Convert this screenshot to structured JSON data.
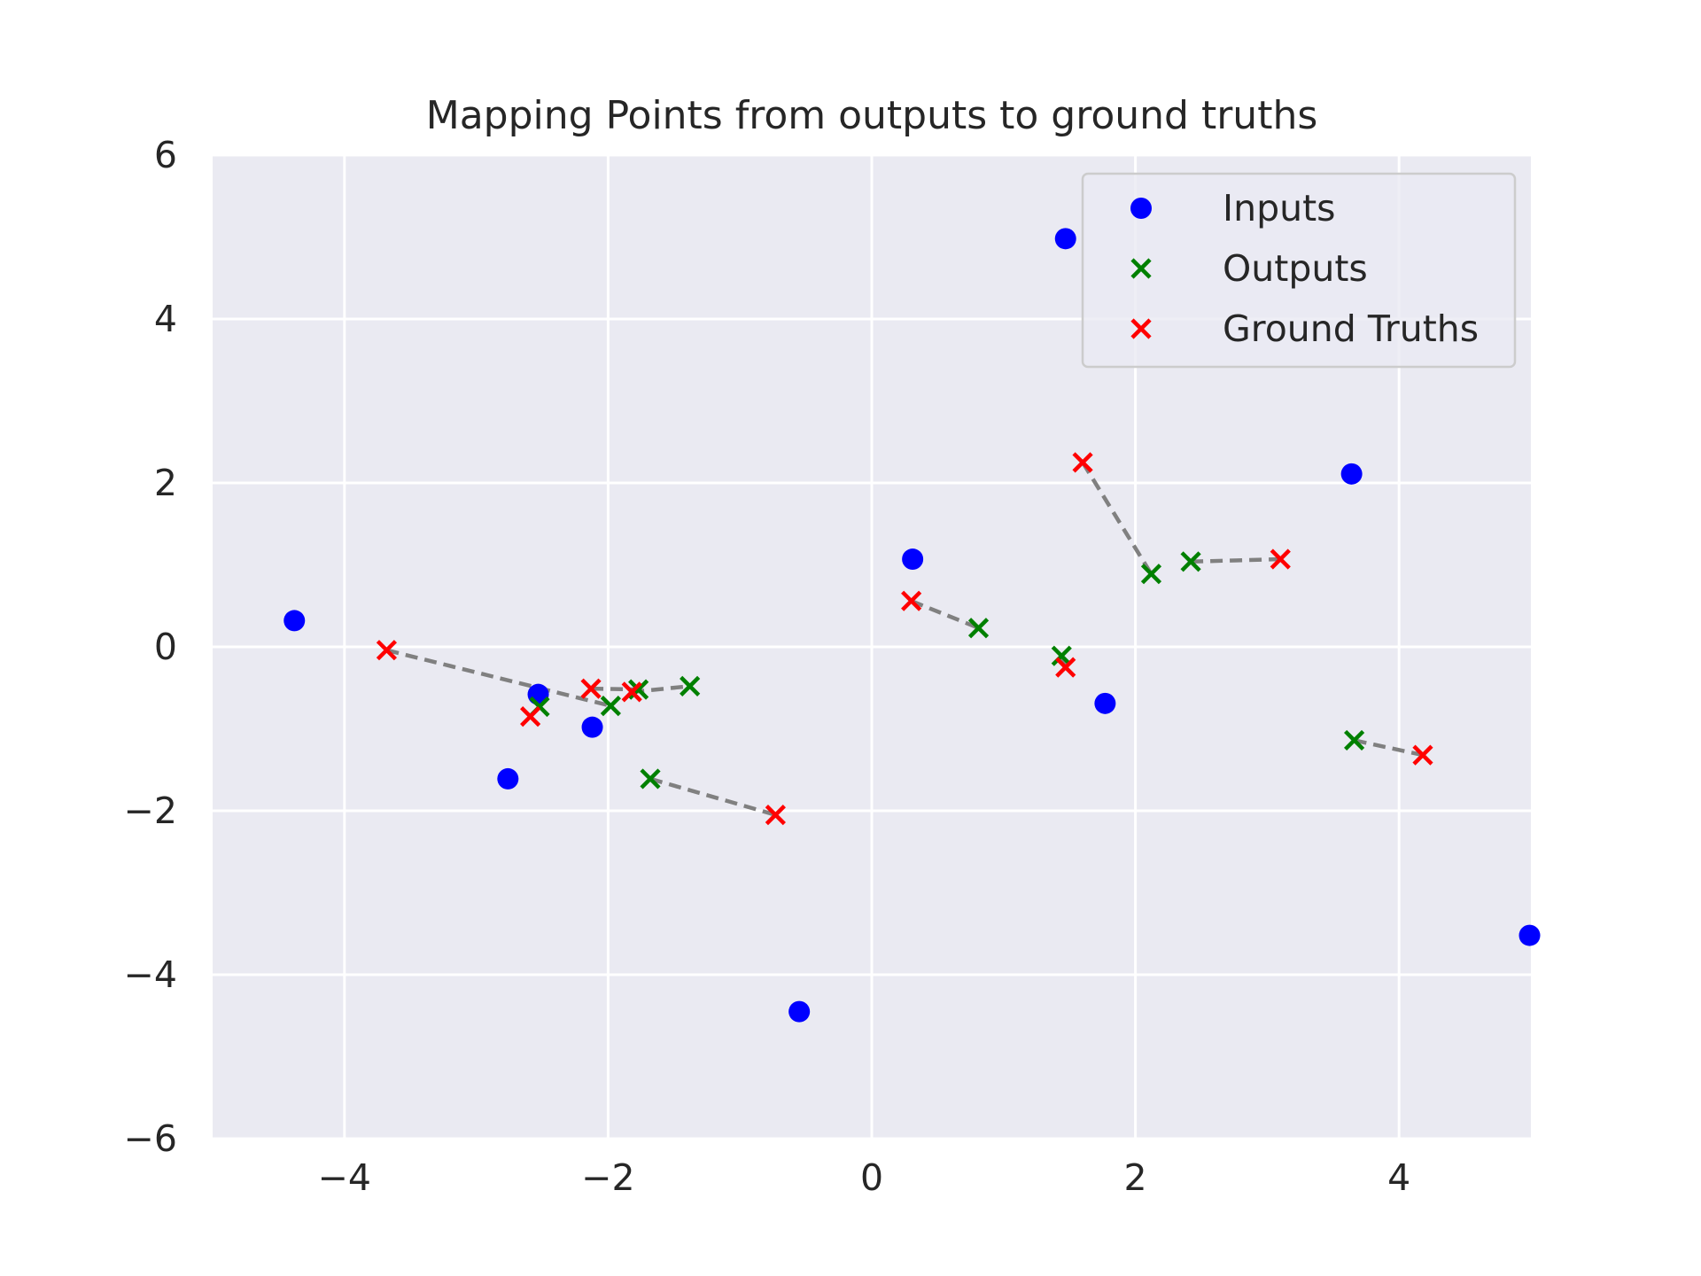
{
  "chart_data": {
    "type": "scatter",
    "title": "Mapping Points from outputs to ground truths",
    "xlabel": "",
    "ylabel": "",
    "xlim": [
      -5,
      5
    ],
    "ylim": [
      -6,
      6
    ],
    "xticks": [
      -4,
      -2,
      0,
      2,
      4
    ],
    "yticks": [
      -6,
      -4,
      -2,
      0,
      2,
      4,
      6
    ],
    "xtick_labels": [
      "−4",
      "−2",
      "0",
      "2",
      "4"
    ],
    "ytick_labels": [
      "−6",
      "−4",
      "−2",
      "0",
      "2",
      "4",
      "6"
    ],
    "grid": true,
    "legend_position": "top-right",
    "series": [
      {
        "name": "Inputs",
        "marker": "circle",
        "color": "#0000ff",
        "points": [
          [
            -4.38,
            0.32
          ],
          [
            -2.53,
            -0.58
          ],
          [
            -2.12,
            -0.98
          ],
          [
            -2.76,
            -1.61
          ],
          [
            -0.55,
            -4.45
          ],
          [
            0.31,
            1.07
          ],
          [
            1.47,
            4.98
          ],
          [
            1.77,
            -0.69
          ],
          [
            3.64,
            2.11
          ],
          [
            4.99,
            -3.52
          ]
        ]
      },
      {
        "name": "Outputs",
        "marker": "x",
        "color": "#008000",
        "points": [
          [
            -2.52,
            -0.73
          ],
          [
            -1.98,
            -0.72
          ],
          [
            -1.77,
            -0.52
          ],
          [
            -1.38,
            -0.48
          ],
          [
            -1.68,
            -1.61
          ],
          [
            0.81,
            0.23
          ],
          [
            1.44,
            -0.11
          ],
          [
            2.12,
            0.89
          ],
          [
            2.42,
            1.04
          ],
          [
            3.66,
            -1.14
          ]
        ]
      },
      {
        "name": "Ground Truths",
        "marker": "x",
        "color": "#ff0000",
        "points": [
          [
            -3.68,
            -0.04
          ],
          [
            -2.59,
            -0.85
          ],
          [
            -2.13,
            -0.51
          ],
          [
            -1.82,
            -0.55
          ],
          [
            -0.73,
            -2.05
          ],
          [
            0.3,
            0.56
          ],
          [
            1.47,
            -0.25
          ],
          [
            1.6,
            2.25
          ],
          [
            3.1,
            1.07
          ],
          [
            4.18,
            -1.32
          ]
        ]
      }
    ],
    "connections": [
      [
        [
          -3.68,
          -0.04
        ],
        [
          -1.98,
          -0.72
        ]
      ],
      [
        [
          -2.59,
          -0.85
        ],
        [
          -2.52,
          -0.73
        ]
      ],
      [
        [
          -2.13,
          -0.51
        ],
        [
          -1.77,
          -0.52
        ]
      ],
      [
        [
          -1.82,
          -0.55
        ],
        [
          -1.38,
          -0.48
        ]
      ],
      [
        [
          -1.68,
          -1.61
        ],
        [
          -0.73,
          -2.05
        ]
      ],
      [
        [
          0.3,
          0.56
        ],
        [
          0.81,
          0.23
        ]
      ],
      [
        [
          1.44,
          -0.11
        ],
        [
          1.47,
          -0.25
        ]
      ],
      [
        [
          1.6,
          2.25
        ],
        [
          2.12,
          0.89
        ]
      ],
      [
        [
          2.42,
          1.04
        ],
        [
          3.1,
          1.07
        ]
      ],
      [
        [
          3.66,
          -1.14
        ],
        [
          4.18,
          -1.32
        ]
      ]
    ],
    "colors": {
      "plot_background": "#eaeaf2",
      "grid": "#ffffff",
      "connection": "#808080"
    }
  }
}
